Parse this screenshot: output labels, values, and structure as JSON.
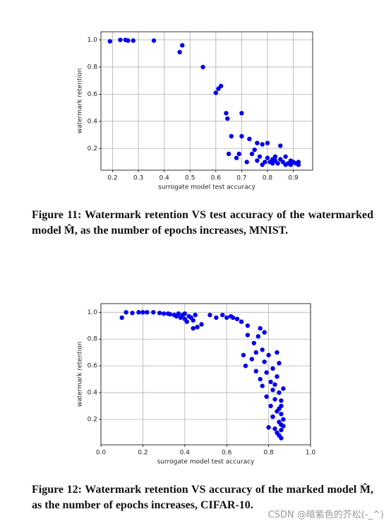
{
  "chart_data": [
    {
      "type": "scatter",
      "xlabel": "surrogate model test accuracy",
      "ylabel": "watermark retention",
      "color": "#0000ee",
      "grid": true,
      "caption": "Figure 11: Watermark retention VS test accuracy of the watermarked model M̂, as the number of epochs increases, MNIST.",
      "xlim": [
        0.155,
        0.975
      ],
      "ylim": [
        0.04,
        1.06
      ],
      "xticks": [
        0.2,
        0.3,
        0.4,
        0.5,
        0.6,
        0.7,
        0.8,
        0.9
      ],
      "yticks": [
        0.2,
        0.4,
        0.6,
        0.8,
        {
          "value": 1,
          "label": "1.0"
        }
      ],
      "x": [
        0.19,
        0.23,
        0.25,
        0.26,
        0.28,
        0.36,
        0.46,
        0.47,
        0.55,
        0.6,
        0.61,
        0.62,
        0.64,
        0.645,
        0.65,
        0.66,
        0.68,
        0.69,
        0.7,
        0.7,
        0.72,
        0.73,
        0.74,
        0.75,
        0.76,
        0.77,
        0.78,
        0.79,
        0.8,
        0.8,
        0.81,
        0.82,
        0.83,
        0.84,
        0.85,
        0.85,
        0.86,
        0.87,
        0.88,
        0.89,
        0.9,
        0.91,
        0.92,
        0.92,
        0.78,
        0.82,
        0.87,
        0.76,
        0.83,
        0.89
      ],
      "values": [
        0.99,
        1.0,
        1.0,
        0.995,
        0.995,
        0.995,
        0.91,
        0.96,
        0.8,
        0.61,
        0.64,
        0.66,
        0.46,
        0.42,
        0.16,
        0.29,
        0.13,
        0.16,
        0.46,
        0.29,
        0.1,
        0.27,
        0.16,
        0.19,
        0.24,
        0.14,
        0.23,
        0.1,
        0.24,
        0.13,
        0.1,
        0.12,
        0.14,
        0.09,
        0.22,
        0.12,
        0.1,
        0.14,
        0.09,
        0.11,
        0.1,
        0.09,
        0.1,
        0.08,
        0.08,
        0.09,
        0.08,
        0.11,
        0.11,
        0.08
      ]
    },
    {
      "type": "scatter",
      "xlabel": "surrogate model test accuracy",
      "ylabel": "watermark retention",
      "color": "#0000ee",
      "grid": true,
      "caption": "Figure 12: Watermark retention VS accuracy of the marked model M̂, as the number of epochs increases, CIFAR-10.",
      "xlim": [
        0,
        1
      ],
      "ylim": [
        0.01,
        1.065
      ],
      "xticks": [
        {
          "value": 0,
          "label": "0.0"
        },
        0.2,
        0.4,
        0.6,
        0.8,
        {
          "value": 1,
          "label": "1.0"
        }
      ],
      "yticks": [
        0.2,
        0.4,
        0.6,
        0.8,
        {
          "value": 1,
          "label": "1.0"
        }
      ],
      "x": [
        0.1,
        0.12,
        0.15,
        0.18,
        0.2,
        0.22,
        0.25,
        0.28,
        0.3,
        0.32,
        0.33,
        0.35,
        0.36,
        0.37,
        0.38,
        0.39,
        0.4,
        0.4,
        0.41,
        0.42,
        0.43,
        0.44,
        0.44,
        0.45,
        0.46,
        0.48,
        0.52,
        0.55,
        0.58,
        0.6,
        0.62,
        0.63,
        0.65,
        0.67,
        0.68,
        0.69,
        0.7,
        0.7,
        0.72,
        0.73,
        0.74,
        0.74,
        0.75,
        0.76,
        0.76,
        0.77,
        0.77,
        0.78,
        0.78,
        0.79,
        0.79,
        0.8,
        0.8,
        0.81,
        0.81,
        0.82,
        0.82,
        0.82,
        0.83,
        0.83,
        0.83,
        0.84,
        0.84,
        0.84,
        0.85,
        0.85,
        0.85,
        0.85,
        0.86,
        0.86,
        0.86,
        0.86,
        0.86,
        0.87,
        0.87,
        0.87,
        0.85,
        0.84,
        0.86
      ],
      "values": [
        0.96,
        1.0,
        0.995,
        1.0,
        1.0,
        1.0,
        1.0,
        0.995,
        0.99,
        0.99,
        0.985,
        0.98,
        0.97,
        0.99,
        0.96,
        0.98,
        0.95,
        0.99,
        0.93,
        0.97,
        0.96,
        0.88,
        0.94,
        0.98,
        0.89,
        0.91,
        0.98,
        0.96,
        0.98,
        0.96,
        0.97,
        0.96,
        0.95,
        0.93,
        0.68,
        0.6,
        0.83,
        0.9,
        0.65,
        0.77,
        0.7,
        0.56,
        0.82,
        0.5,
        0.88,
        0.72,
        0.45,
        0.63,
        0.85,
        0.55,
        0.37,
        0.68,
        0.14,
        0.48,
        0.3,
        0.42,
        0.58,
        0.22,
        0.46,
        0.35,
        0.13,
        0.7,
        0.26,
        0.52,
        0.62,
        0.4,
        0.18,
        0.08,
        0.3,
        0.12,
        0.24,
        0.34,
        0.06,
        0.2,
        0.43,
        0.15,
        0.28,
        0.1,
        0.16
      ]
    }
  ],
  "watermark": "CSDN @暗紫色的芥松(-_^)"
}
